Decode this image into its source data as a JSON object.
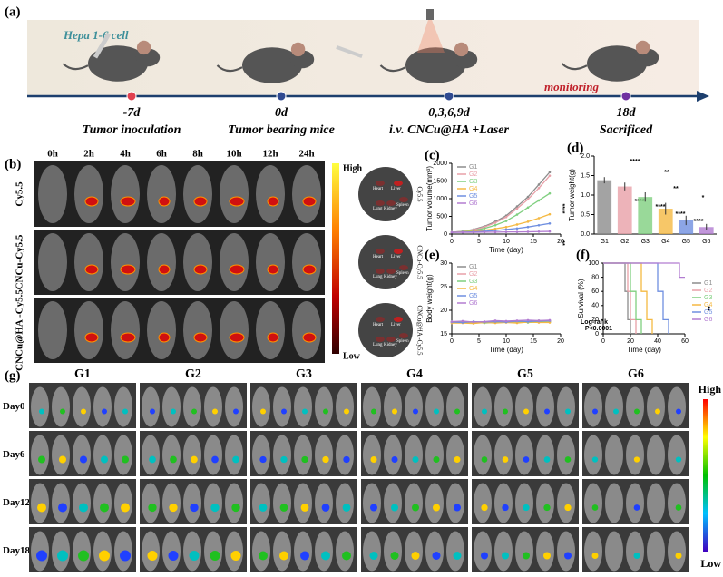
{
  "panel_a": {
    "label": "(a)",
    "cell": "Hepa 1-6 cell",
    "monitoring": "monitoring",
    "timeline": [
      {
        "day": "-7d",
        "event": "Tumor inoculation"
      },
      {
        "day": "0d",
        "event": "Tumor bearing mice"
      },
      {
        "day": "0,3,6,9d",
        "event": "i.v. CNCu@HA +Laser"
      },
      {
        "day": "18d",
        "event": "Sacrificed"
      }
    ]
  },
  "panel_b": {
    "label": "(b)",
    "times": [
      "0h",
      "2h",
      "4h",
      "6h",
      "8h",
      "10h",
      "12h",
      "24h"
    ],
    "rows": [
      "Cy5.5",
      "CNCu-Cy5.5",
      "CNCu@HA -Cy5.5"
    ],
    "high": "High",
    "low": "Low",
    "organs": [
      "Heart",
      "Liver",
      "Lung",
      "Kidney",
      "Spleen"
    ]
  },
  "panel_g": {
    "label": "(g)",
    "groups": [
      "G1",
      "G2",
      "G3",
      "G4",
      "G5",
      "G6"
    ],
    "days": [
      "Day0",
      "Day6",
      "Day12",
      "Day18"
    ],
    "high": "High",
    "low": "Low"
  },
  "chart_data": [
    {
      "type": "line",
      "panel": "(c)",
      "x_label": "Time (day)",
      "y_label": "Tumor volume(mm³)",
      "xlim": [
        0,
        20
      ],
      "xticks": [
        0,
        5,
        10,
        15,
        20
      ],
      "ylim": [
        0,
        2000
      ],
      "yticks": [
        0,
        500,
        1000,
        1500,
        2000
      ],
      "legend": "upper left",
      "annotations": [
        "****",
        "**"
      ],
      "x": [
        0,
        2,
        4,
        6,
        8,
        10,
        12,
        14,
        16,
        18
      ],
      "series": [
        {
          "name": "G1",
          "color": "#8c8c8c",
          "values": [
            50,
            80,
            130,
            220,
            350,
            520,
            780,
            1050,
            1400,
            1750
          ]
        },
        {
          "name": "G2",
          "color": "#e8a0a8",
          "values": [
            50,
            75,
            120,
            200,
            320,
            480,
            720,
            980,
            1300,
            1650
          ]
        },
        {
          "name": "G3",
          "color": "#7fcf7f",
          "values": [
            50,
            70,
            100,
            160,
            250,
            370,
            550,
            750,
            950,
            1150
          ]
        },
        {
          "name": "G4",
          "color": "#f5b942",
          "values": [
            50,
            60,
            80,
            110,
            150,
            200,
            270,
            350,
            450,
            560
          ]
        },
        {
          "name": "G5",
          "color": "#6f8fe0",
          "values": [
            50,
            55,
            65,
            80,
            100,
            130,
            160,
            200,
            250,
            300
          ]
        },
        {
          "name": "G6",
          "color": "#b27cd1",
          "values": [
            50,
            50,
            50,
            55,
            55,
            60,
            60,
            65,
            70,
            75
          ]
        }
      ]
    },
    {
      "type": "bar",
      "panel": "(d)",
      "y_label": "Tumor weight(g)",
      "ylim": [
        0,
        2
      ],
      "yticks": [
        {
          "value": 0,
          "label": "0.0"
        },
        {
          "value": 0.5,
          "label": "0.5"
        },
        {
          "value": 1,
          "label": "1.0"
        },
        {
          "value": 1.5,
          "label": "1.5"
        },
        {
          "value": 2,
          "label": "2.0"
        }
      ],
      "annotations": [
        "****",
        "**",
        "**",
        "*",
        "****",
        "****",
        "****",
        "****"
      ],
      "categories": [
        "G1",
        "G2",
        "G3",
        "G4",
        "G5",
        "G6"
      ],
      "values": [
        1.38,
        1.22,
        0.95,
        0.65,
        0.35,
        0.18
      ],
      "errors": [
        0.08,
        0.1,
        0.12,
        0.15,
        0.12,
        0.08
      ],
      "colors": [
        "#8c8c8c",
        "#e8a0a8",
        "#7fcf7f",
        "#f5b942",
        "#6f8fe0",
        "#b27cd1"
      ]
    },
    {
      "type": "line",
      "panel": "(e)",
      "x_label": "Time (day)",
      "y_label": "Body weight(g)",
      "xlim": [
        0,
        20
      ],
      "xticks": [
        0,
        5,
        10,
        15,
        20
      ],
      "ylim": [
        15,
        30
      ],
      "yticks": [
        15,
        20,
        25,
        30
      ],
      "legend": "upper left",
      "x": [
        0,
        2,
        4,
        6,
        8,
        10,
        12,
        14,
        16,
        18
      ],
      "series": [
        {
          "name": "G1",
          "color": "#8c8c8c",
          "values": [
            17.5,
            17.6,
            17.4,
            17.5,
            17.7,
            17.6,
            17.5,
            17.6,
            17.8,
            17.7
          ]
        },
        {
          "name": "G2",
          "color": "#e8a0a8",
          "values": [
            17.4,
            17.5,
            17.3,
            17.4,
            17.5,
            17.6,
            17.4,
            17.5,
            17.6,
            17.6
          ]
        },
        {
          "name": "G3",
          "color": "#7fcf7f",
          "values": [
            17.6,
            17.4,
            17.5,
            17.3,
            17.4,
            17.5,
            17.6,
            17.4,
            17.5,
            17.5
          ]
        },
        {
          "name": "G4",
          "color": "#f5b942",
          "values": [
            17.3,
            17.3,
            17.2,
            17.4,
            17.3,
            17.4,
            17.3,
            17.5,
            17.4,
            17.4
          ]
        },
        {
          "name": "G5",
          "color": "#6f8fe0",
          "values": [
            17.5,
            17.4,
            17.6,
            17.5,
            17.6,
            17.5,
            17.7,
            17.6,
            17.7,
            17.8
          ]
        },
        {
          "name": "G6",
          "color": "#b27cd1",
          "values": [
            17.6,
            17.7,
            17.5,
            17.6,
            17.8,
            17.7,
            17.8,
            17.9,
            17.8,
            17.9
          ]
        }
      ]
    },
    {
      "type": "step",
      "panel": "(f)",
      "x_label": "Time (day)",
      "y_label": "Survival (%)",
      "xlim": [
        0,
        60
      ],
      "xticks": [
        0,
        20,
        40,
        60
      ],
      "ylim": [
        0,
        100
      ],
      "yticks": [
        0,
        20,
        40,
        60,
        80,
        100
      ],
      "legend": "right",
      "annotations": [
        "Log-rank",
        "P<0.0001",
        "**"
      ],
      "series": [
        {
          "name": "G1",
          "color": "#8c8c8c",
          "x": [
            0,
            16,
            18,
            20
          ],
          "values": [
            100,
            60,
            20,
            0
          ]
        },
        {
          "name": "G2",
          "color": "#e8a0a8",
          "x": [
            0,
            18,
            20,
            24
          ],
          "values": [
            100,
            60,
            20,
            0
          ]
        },
        {
          "name": "G3",
          "color": "#7fcf7f",
          "x": [
            0,
            20,
            24,
            28
          ],
          "values": [
            100,
            60,
            20,
            0
          ]
        },
        {
          "name": "G4",
          "color": "#f5b942",
          "x": [
            0,
            28,
            32,
            36
          ],
          "values": [
            100,
            60,
            20,
            0
          ]
        },
        {
          "name": "G5",
          "color": "#6f8fe0",
          "x": [
            0,
            40,
            44,
            48
          ],
          "values": [
            100,
            60,
            20,
            0
          ]
        },
        {
          "name": "G6",
          "color": "#b27cd1",
          "x": [
            0,
            56,
            60
          ],
          "values": [
            100,
            80,
            80
          ]
        }
      ]
    }
  ]
}
